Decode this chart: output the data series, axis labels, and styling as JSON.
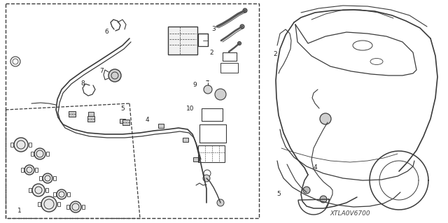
{
  "fig_width": 6.4,
  "fig_height": 3.19,
  "dpi": 100,
  "bg_color": "#ffffff",
  "lc": "#3a3a3a",
  "diagram_code": "XTLA0V6700"
}
